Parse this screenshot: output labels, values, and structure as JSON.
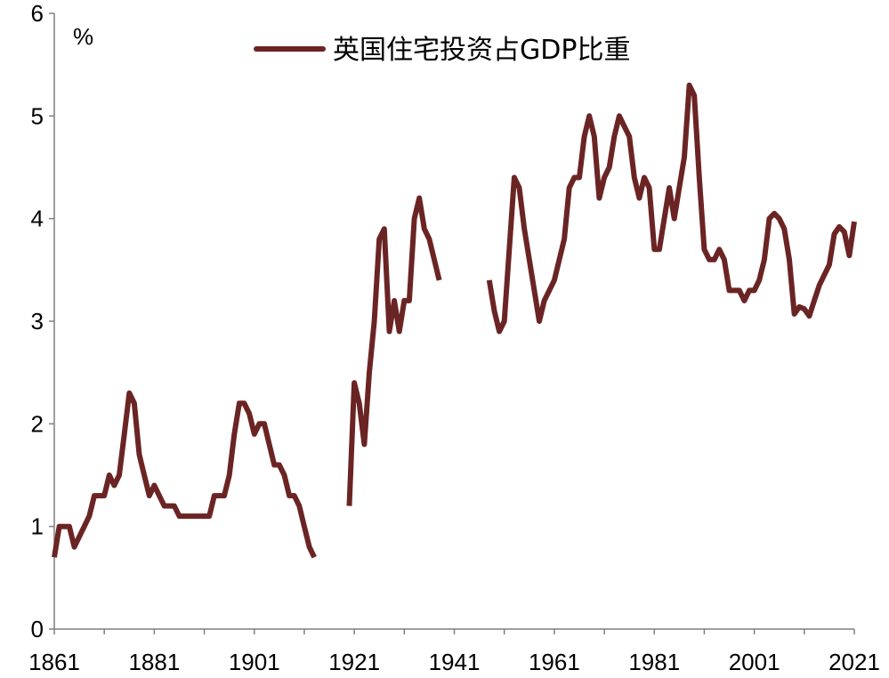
{
  "chart_data": {
    "type": "line",
    "title": "",
    "unit_label": "%",
    "xlabel": "",
    "ylabel": "",
    "xlim": [
      1861,
      2021
    ],
    "ylim": [
      0,
      6
    ],
    "x_ticks": [
      1861,
      1881,
      1901,
      1921,
      1941,
      1961,
      1981,
      2001,
      2021
    ],
    "y_ticks": [
      0,
      1,
      2,
      3,
      4,
      5,
      6
    ],
    "grid": false,
    "legend_position": "top-center",
    "line_color": "#6b2424",
    "series": [
      {
        "name": "英国住宅投资占GDP比重",
        "segments": [
          [
            [
              1861,
              0.7
            ],
            [
              1862,
              1.0
            ],
            [
              1863,
              1.0
            ],
            [
              1864,
              1.0
            ],
            [
              1865,
              0.8
            ],
            [
              1866,
              0.9
            ],
            [
              1867,
              1.0
            ],
            [
              1868,
              1.1
            ],
            [
              1869,
              1.3
            ],
            [
              1870,
              1.3
            ],
            [
              1871,
              1.3
            ],
            [
              1872,
              1.5
            ],
            [
              1873,
              1.4
            ],
            [
              1874,
              1.5
            ],
            [
              1875,
              1.9
            ],
            [
              1876,
              2.3
            ],
            [
              1877,
              2.2
            ],
            [
              1878,
              1.7
            ],
            [
              1879,
              1.5
            ],
            [
              1880,
              1.3
            ],
            [
              1881,
              1.4
            ],
            [
              1882,
              1.3
            ],
            [
              1883,
              1.2
            ],
            [
              1884,
              1.2
            ],
            [
              1885,
              1.2
            ],
            [
              1886,
              1.1
            ],
            [
              1887,
              1.1
            ],
            [
              1888,
              1.1
            ],
            [
              1889,
              1.1
            ],
            [
              1890,
              1.1
            ],
            [
              1891,
              1.1
            ],
            [
              1892,
              1.1
            ],
            [
              1893,
              1.3
            ],
            [
              1894,
              1.3
            ],
            [
              1895,
              1.3
            ],
            [
              1896,
              1.5
            ],
            [
              1897,
              1.9
            ],
            [
              1898,
              2.2
            ],
            [
              1899,
              2.2
            ],
            [
              1900,
              2.1
            ],
            [
              1901,
              1.9
            ],
            [
              1902,
              2.0
            ],
            [
              1903,
              2.0
            ],
            [
              1904,
              1.8
            ],
            [
              1905,
              1.6
            ],
            [
              1906,
              1.6
            ],
            [
              1907,
              1.5
            ],
            [
              1908,
              1.3
            ],
            [
              1909,
              1.3
            ],
            [
              1910,
              1.2
            ],
            [
              1911,
              1.0
            ],
            [
              1912,
              0.8
            ],
            [
              1913,
              0.7
            ]
          ],
          [
            [
              1920,
              1.2
            ],
            [
              1921,
              2.4
            ],
            [
              1922,
              2.2
            ],
            [
              1923,
              1.8
            ],
            [
              1924,
              2.5
            ],
            [
              1925,
              3.0
            ],
            [
              1926,
              3.8
            ],
            [
              1927,
              3.9
            ],
            [
              1928,
              2.9
            ],
            [
              1929,
              3.2
            ],
            [
              1930,
              2.9
            ],
            [
              1931,
              3.2
            ],
            [
              1932,
              3.2
            ],
            [
              1933,
              4.0
            ],
            [
              1934,
              4.2
            ],
            [
              1935,
              3.9
            ],
            [
              1936,
              3.8
            ],
            [
              1937,
              3.6
            ],
            [
              1938,
              3.4
            ]
          ],
          [
            [
              1948,
              3.4
            ],
            [
              1949,
              3.1
            ],
            [
              1950,
              2.9
            ],
            [
              1951,
              3.0
            ],
            [
              1952,
              3.7
            ],
            [
              1953,
              4.4
            ],
            [
              1954,
              4.3
            ],
            [
              1955,
              3.9
            ],
            [
              1956,
              3.6
            ],
            [
              1957,
              3.3
            ],
            [
              1958,
              3.0
            ],
            [
              1959,
              3.2
            ],
            [
              1960,
              3.3
            ],
            [
              1961,
              3.4
            ],
            [
              1962,
              3.6
            ],
            [
              1963,
              3.8
            ],
            [
              1964,
              4.3
            ],
            [
              1965,
              4.4
            ],
            [
              1966,
              4.4
            ],
            [
              1967,
              4.8
            ],
            [
              1968,
              5.0
            ],
            [
              1969,
              4.8
            ],
            [
              1970,
              4.2
            ],
            [
              1971,
              4.4
            ],
            [
              1972,
              4.5
            ],
            [
              1973,
              4.8
            ],
            [
              1974,
              5.0
            ],
            [
              1975,
              4.9
            ],
            [
              1976,
              4.8
            ],
            [
              1977,
              4.4
            ],
            [
              1978,
              4.2
            ],
            [
              1979,
              4.4
            ],
            [
              1980,
              4.3
            ],
            [
              1981,
              3.7
            ],
            [
              1982,
              3.7
            ],
            [
              1983,
              4.0
            ],
            [
              1984,
              4.3
            ],
            [
              1985,
              4.0
            ],
            [
              1986,
              4.3
            ],
            [
              1987,
              4.6
            ],
            [
              1988,
              5.3
            ],
            [
              1989,
              5.2
            ],
            [
              1990,
              4.4
            ],
            [
              1991,
              3.7
            ],
            [
              1992,
              3.6
            ],
            [
              1993,
              3.6
            ],
            [
              1994,
              3.7
            ],
            [
              1995,
              3.6
            ],
            [
              1996,
              3.3
            ],
            [
              1997,
              3.3
            ],
            [
              1998,
              3.3
            ],
            [
              1999,
              3.2
            ],
            [
              2000,
              3.3
            ],
            [
              2001,
              3.3
            ],
            [
              2002,
              3.4
            ],
            [
              2003,
              3.6
            ],
            [
              2004,
              4.0
            ],
            [
              2005,
              4.05
            ],
            [
              2006,
              4.0
            ],
            [
              2007,
              3.9
            ],
            [
              2008,
              3.6
            ],
            [
              2009,
              3.07
            ],
            [
              2010,
              3.14
            ],
            [
              2011,
              3.12
            ],
            [
              2012,
              3.05
            ],
            [
              2013,
              3.2
            ],
            [
              2014,
              3.35
            ],
            [
              2015,
              3.45
            ],
            [
              2016,
              3.55
            ],
            [
              2017,
              3.85
            ],
            [
              2018,
              3.92
            ],
            [
              2019,
              3.87
            ],
            [
              2020,
              3.64
            ],
            [
              2021,
              3.97
            ]
          ]
        ]
      }
    ]
  }
}
